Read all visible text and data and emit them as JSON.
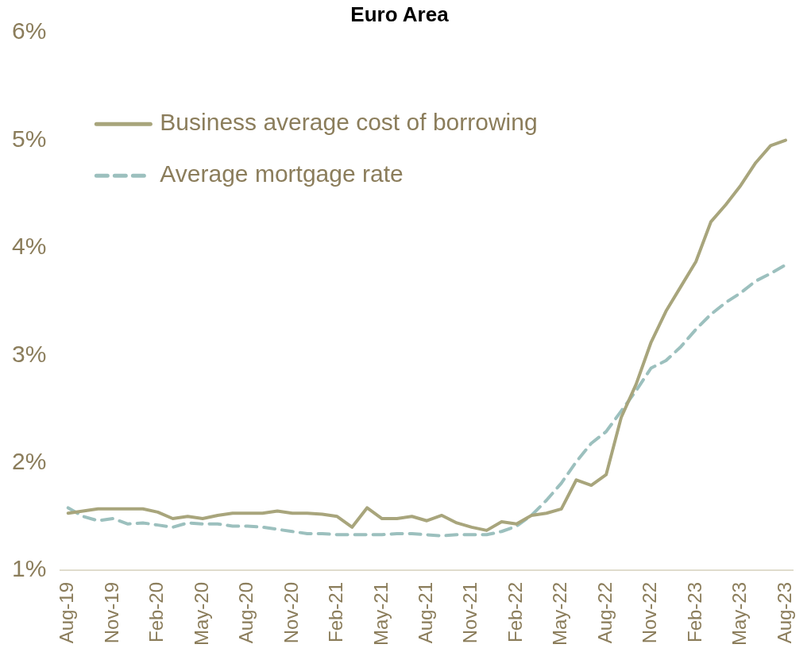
{
  "chart_data": {
    "type": "line",
    "title": "Euro Area",
    "categories": [
      "Aug-19",
      null,
      null,
      "Nov-19",
      null,
      null,
      "Feb-20",
      null,
      null,
      "May-20",
      null,
      null,
      "Aug-20",
      null,
      null,
      "Nov-20",
      null,
      null,
      "Feb-21",
      null,
      null,
      "May-21",
      null,
      null,
      "Aug-21",
      null,
      null,
      "Nov-21",
      null,
      null,
      "Feb-22",
      null,
      null,
      "May-22",
      null,
      null,
      "Aug-22",
      null,
      null,
      "Nov-22",
      null,
      null,
      "Feb-23",
      null,
      null,
      "May-23",
      null,
      null,
      "Aug-23"
    ],
    "series": [
      {
        "name": "Business average cost of borrowing",
        "color": "#a8a57c",
        "line_style": "solid",
        "values": [
          1.53,
          1.55,
          1.57,
          1.57,
          1.57,
          1.57,
          1.54,
          1.48,
          1.5,
          1.48,
          1.51,
          1.53,
          1.53,
          1.53,
          1.55,
          1.53,
          1.53,
          1.52,
          1.5,
          1.4,
          1.58,
          1.48,
          1.48,
          1.5,
          1.46,
          1.51,
          1.44,
          1.4,
          1.37,
          1.45,
          1.43,
          1.51,
          1.53,
          1.57,
          1.84,
          1.79,
          1.89,
          2.42,
          2.73,
          3.12,
          3.41,
          3.64,
          3.87,
          4.24,
          4.4,
          4.58,
          4.79,
          4.95,
          5.0
        ]
      },
      {
        "name": "Average mortgage rate",
        "color": "#9cc0be",
        "line_style": "dashed",
        "values": [
          1.58,
          1.5,
          1.46,
          1.48,
          1.43,
          1.44,
          1.42,
          1.4,
          1.44,
          1.43,
          1.43,
          1.41,
          1.41,
          1.4,
          1.38,
          1.36,
          1.34,
          1.34,
          1.33,
          1.33,
          1.33,
          1.33,
          1.34,
          1.34,
          1.33,
          1.32,
          1.33,
          1.33,
          1.33,
          1.36,
          1.41,
          1.51,
          1.65,
          1.81,
          2.01,
          2.18,
          2.29,
          2.48,
          2.67,
          2.88,
          2.95,
          3.08,
          3.24,
          3.38,
          3.49,
          3.58,
          3.69,
          3.76,
          3.84
        ]
      }
    ],
    "ylim": [
      1,
      6
    ],
    "yticks": [
      {
        "value": 1,
        "label": "1%"
      },
      {
        "value": 2,
        "label": "2%"
      },
      {
        "value": 3,
        "label": "3%"
      },
      {
        "value": 4,
        "label": "4%"
      },
      {
        "value": 5,
        "label": "5%"
      },
      {
        "value": 6,
        "label": "6%"
      }
    ],
    "grid": false,
    "legend": "top left",
    "marker": "none"
  }
}
